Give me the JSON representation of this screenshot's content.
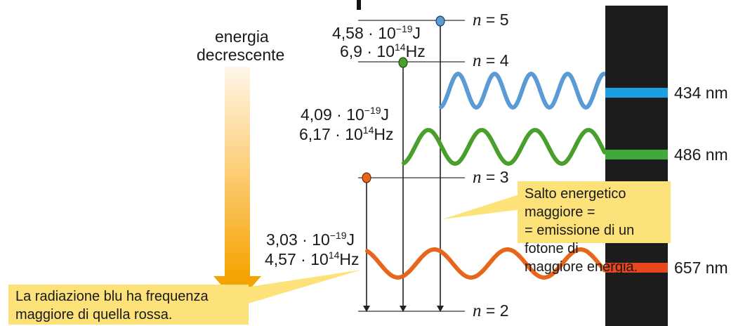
{
  "energy_arrow": {
    "line1": "energia",
    "line2": "decrescente"
  },
  "levels": [
    {
      "var": "n",
      "eq": " = ",
      "value": "5"
    },
    {
      "var": "n",
      "eq": " = ",
      "value": "4"
    },
    {
      "var": "n",
      "eq": " = ",
      "value": "3"
    },
    {
      "var": "n",
      "eq": " = ",
      "value": "2"
    }
  ],
  "transitions": [
    {
      "energy_mantissa": "4,58 · 10",
      "energy_exp": "−19",
      "energy_unit": "J",
      "freq_mantissa": "6,9 · 10",
      "freq_exp": "14",
      "freq_unit": "Hz",
      "color": "#5b9bd5",
      "wavelength_label": "434 nm"
    },
    {
      "energy_mantissa": "4,09 · 10",
      "energy_exp": "−19",
      "energy_unit": "J",
      "freq_mantissa": "6,17 · 10",
      "freq_exp": "14",
      "freq_unit": "Hz",
      "color": "#4a9e2c",
      "wavelength_label": "486 nm"
    },
    {
      "energy_mantissa": "3,03 · 10",
      "energy_exp": "−19",
      "energy_unit": "J",
      "freq_mantissa": "4,57 · 10",
      "freq_exp": "14",
      "freq_unit": "Hz",
      "color": "#e8661c",
      "wavelength_label": "657 nm"
    }
  ],
  "spectrum": {
    "background_color": "#1c1c1c",
    "line_colors": [
      "#1a9fe0",
      "#3fa93a",
      "#e8461c"
    ]
  },
  "callouts": {
    "right": {
      "line1": "Salto energetico maggiore =",
      "line2": "= emissione di un fotone di",
      "line3": "maggiore energia."
    },
    "left": {
      "line1": "La radiazione blu ha frequenza",
      "line2": "maggiore di quella rossa."
    }
  },
  "colors": {
    "callout_fill": "#fde27a",
    "arrow_top": "#fff6e8",
    "arrow_bottom": "#f5a300"
  }
}
